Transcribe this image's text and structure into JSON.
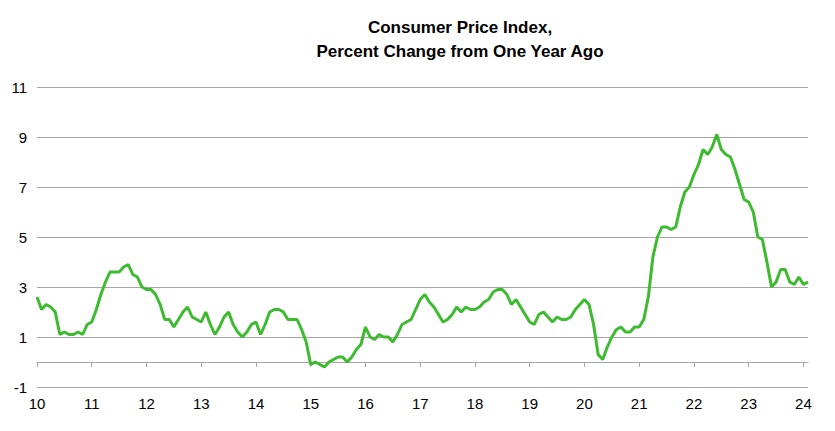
{
  "chart_data": {
    "type": "line",
    "title": "Consumer Price Index,\nPercent Change from One Year Ago",
    "categories": [
      "10",
      null,
      null,
      null,
      null,
      null,
      null,
      null,
      null,
      null,
      null,
      null,
      "11",
      null,
      null,
      null,
      null,
      null,
      null,
      null,
      null,
      null,
      null,
      null,
      "12",
      null,
      null,
      null,
      null,
      null,
      null,
      null,
      null,
      null,
      null,
      null,
      "13",
      null,
      null,
      null,
      null,
      null,
      null,
      null,
      null,
      null,
      null,
      null,
      "14",
      null,
      null,
      null,
      null,
      null,
      null,
      null,
      null,
      null,
      null,
      null,
      "15",
      null,
      null,
      null,
      null,
      null,
      null,
      null,
      null,
      null,
      null,
      null,
      "16",
      null,
      null,
      null,
      null,
      null,
      null,
      null,
      null,
      null,
      null,
      null,
      "17",
      null,
      null,
      null,
      null,
      null,
      null,
      null,
      null,
      null,
      null,
      null,
      "18",
      null,
      null,
      null,
      null,
      null,
      null,
      null,
      null,
      null,
      null,
      null,
      "19",
      null,
      null,
      null,
      null,
      null,
      null,
      null,
      null,
      null,
      null,
      null,
      "20",
      null,
      null,
      null,
      null,
      null,
      null,
      null,
      null,
      null,
      null,
      null,
      "21",
      null,
      null,
      null,
      null,
      null,
      null,
      null,
      null,
      null,
      null,
      null,
      "22",
      null,
      null,
      null,
      null,
      null,
      null,
      null,
      null,
      null,
      null,
      null,
      "23",
      null,
      null,
      null,
      null,
      null,
      null,
      null,
      null,
      null,
      null,
      null,
      "24",
      null
    ],
    "values": [
      2.6,
      2.1,
      2.3,
      2.2,
      2.0,
      1.1,
      1.2,
      1.1,
      1.1,
      1.2,
      1.1,
      1.5,
      1.6,
      2.1,
      2.7,
      3.2,
      3.6,
      3.6,
      3.6,
      3.8,
      3.9,
      3.5,
      3.4,
      3.0,
      2.9,
      2.9,
      2.7,
      2.3,
      1.7,
      1.7,
      1.4,
      1.7,
      2.0,
      2.2,
      1.8,
      1.7,
      1.6,
      2.0,
      1.5,
      1.1,
      1.4,
      1.8,
      2.0,
      1.5,
      1.2,
      1.0,
      1.2,
      1.5,
      1.6,
      1.1,
      1.5,
      2.0,
      2.1,
      2.1,
      2.0,
      1.7,
      1.7,
      1.7,
      1.3,
      0.8,
      -0.1,
      0.0,
      -0.1,
      -0.2,
      0.0,
      0.1,
      0.2,
      0.2,
      0.0,
      0.2,
      0.5,
      0.7,
      1.4,
      1.0,
      0.9,
      1.1,
      1.0,
      1.0,
      0.8,
      1.1,
      1.5,
      1.6,
      1.7,
      2.1,
      2.5,
      2.7,
      2.4,
      2.2,
      1.9,
      1.6,
      1.7,
      1.9,
      2.2,
      2.0,
      2.2,
      2.1,
      2.1,
      2.2,
      2.4,
      2.5,
      2.8,
      2.9,
      2.9,
      2.7,
      2.3,
      2.5,
      2.2,
      1.9,
      1.6,
      1.5,
      1.9,
      2.0,
      1.8,
      1.6,
      1.8,
      1.7,
      1.7,
      1.8,
      2.1,
      2.3,
      2.5,
      2.3,
      1.5,
      0.3,
      0.1,
      0.6,
      1.0,
      1.3,
      1.4,
      1.2,
      1.2,
      1.4,
      1.4,
      1.7,
      2.6,
      4.2,
      5.0,
      5.4,
      5.4,
      5.3,
      5.4,
      6.2,
      6.8,
      7.0,
      7.5,
      7.9,
      8.5,
      8.3,
      8.6,
      9.1,
      8.5,
      8.3,
      8.2,
      7.7,
      7.1,
      6.5,
      6.4,
      6.0,
      5.0,
      4.9,
      4.0,
      3.0,
      3.2,
      3.7,
      3.7,
      3.2,
      3.1,
      3.4,
      3.1,
      3.2
    ],
    "color": "#3dbb2f",
    "ylim": [
      -1,
      11
    ],
    "yticks": [
      -1,
      1,
      3,
      5,
      7,
      9,
      11
    ],
    "grid": true
  }
}
